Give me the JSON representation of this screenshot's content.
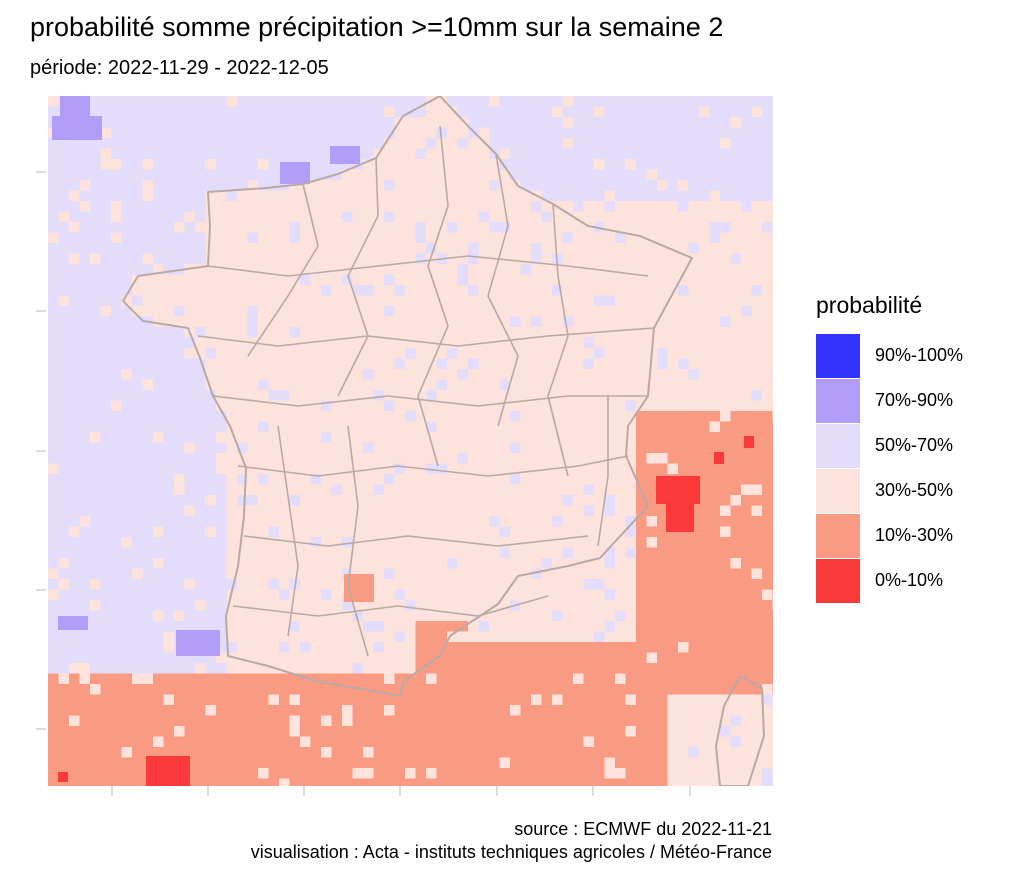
{
  "title": "probabilité somme précipitation >=10mm sur la semaine 2",
  "subtitle": "période: 2022-11-29 - 2022-12-05",
  "legend": {
    "title": "probabilité",
    "items": [
      {
        "label": "90%-100%",
        "color": "#3333ff"
      },
      {
        "label": "70%-90%",
        "color": "#b19cf7"
      },
      {
        "label": "50%-70%",
        "color": "#e3dcfa"
      },
      {
        "label": "30%-50%",
        "color": "#fde3dc"
      },
      {
        "label": "10%-30%",
        "color": "#f99a82"
      },
      {
        "label": "0%-10%",
        "color": "#fa3a3a"
      }
    ]
  },
  "caption": {
    "source": "source : ECMWF du 2022-11-21",
    "credit": "visualisation : Acta - instituts techniques agricoles / Météo-France"
  },
  "map": {
    "region": "France",
    "layers": [
      "probability-grid",
      "department-borders"
    ],
    "border_color": "#b9a9a6"
  }
}
